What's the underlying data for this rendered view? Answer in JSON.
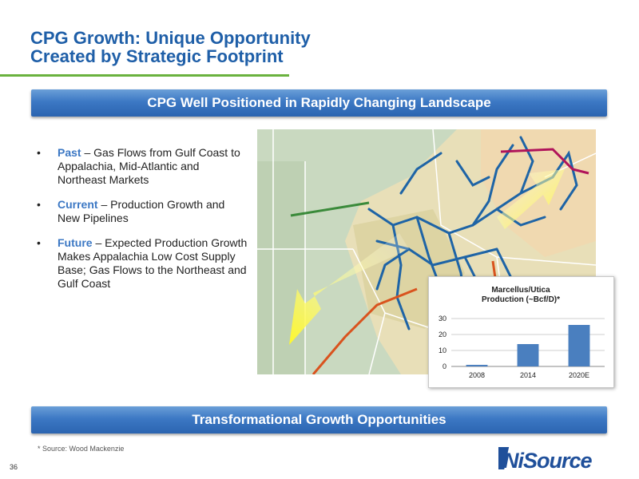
{
  "slide": {
    "title_line1": "CPG Growth: Unique Opportunity",
    "title_line2": "Created by Strategic Footprint",
    "banner_top": "CPG Well Positioned in Rapidly Changing Landscape",
    "banner_bottom": "Transformational Growth Opportunities",
    "source_note": "* Source: Wood Mackenzie",
    "page_number": "36",
    "logo_text": "NiSource"
  },
  "bullets": [
    {
      "keyword": "Past",
      "text": " – Gas Flows from Gulf Coast to Appalachia, Mid-Atlantic and Northeast Markets"
    },
    {
      "keyword": "Current",
      "text": " – Production Growth and New Pipelines"
    },
    {
      "keyword": "Future",
      "text": " – Expected Production Growth Makes Appalachia Low Cost Supply Base; Gas Flows to the Northeast and Gulf Coast"
    }
  ],
  "bullet_symbol": "•",
  "colors": {
    "title": "#1f5fa8",
    "accent_green": "#6ab23e",
    "keyword": "#3c78c4",
    "pipeline": "#1e64a6",
    "bar": "#4a7fbf"
  },
  "chart_data": {
    "type": "bar",
    "title_line1": "Marcellus/Utica",
    "title_line2": "Production (~Bcf/D)*",
    "categories": [
      "2008",
      "2014",
      "2020E"
    ],
    "values": [
      1,
      14,
      26
    ],
    "ylim": [
      0,
      30
    ],
    "yticks": [
      0,
      10,
      20,
      30
    ],
    "grid": true,
    "legend": "none"
  }
}
